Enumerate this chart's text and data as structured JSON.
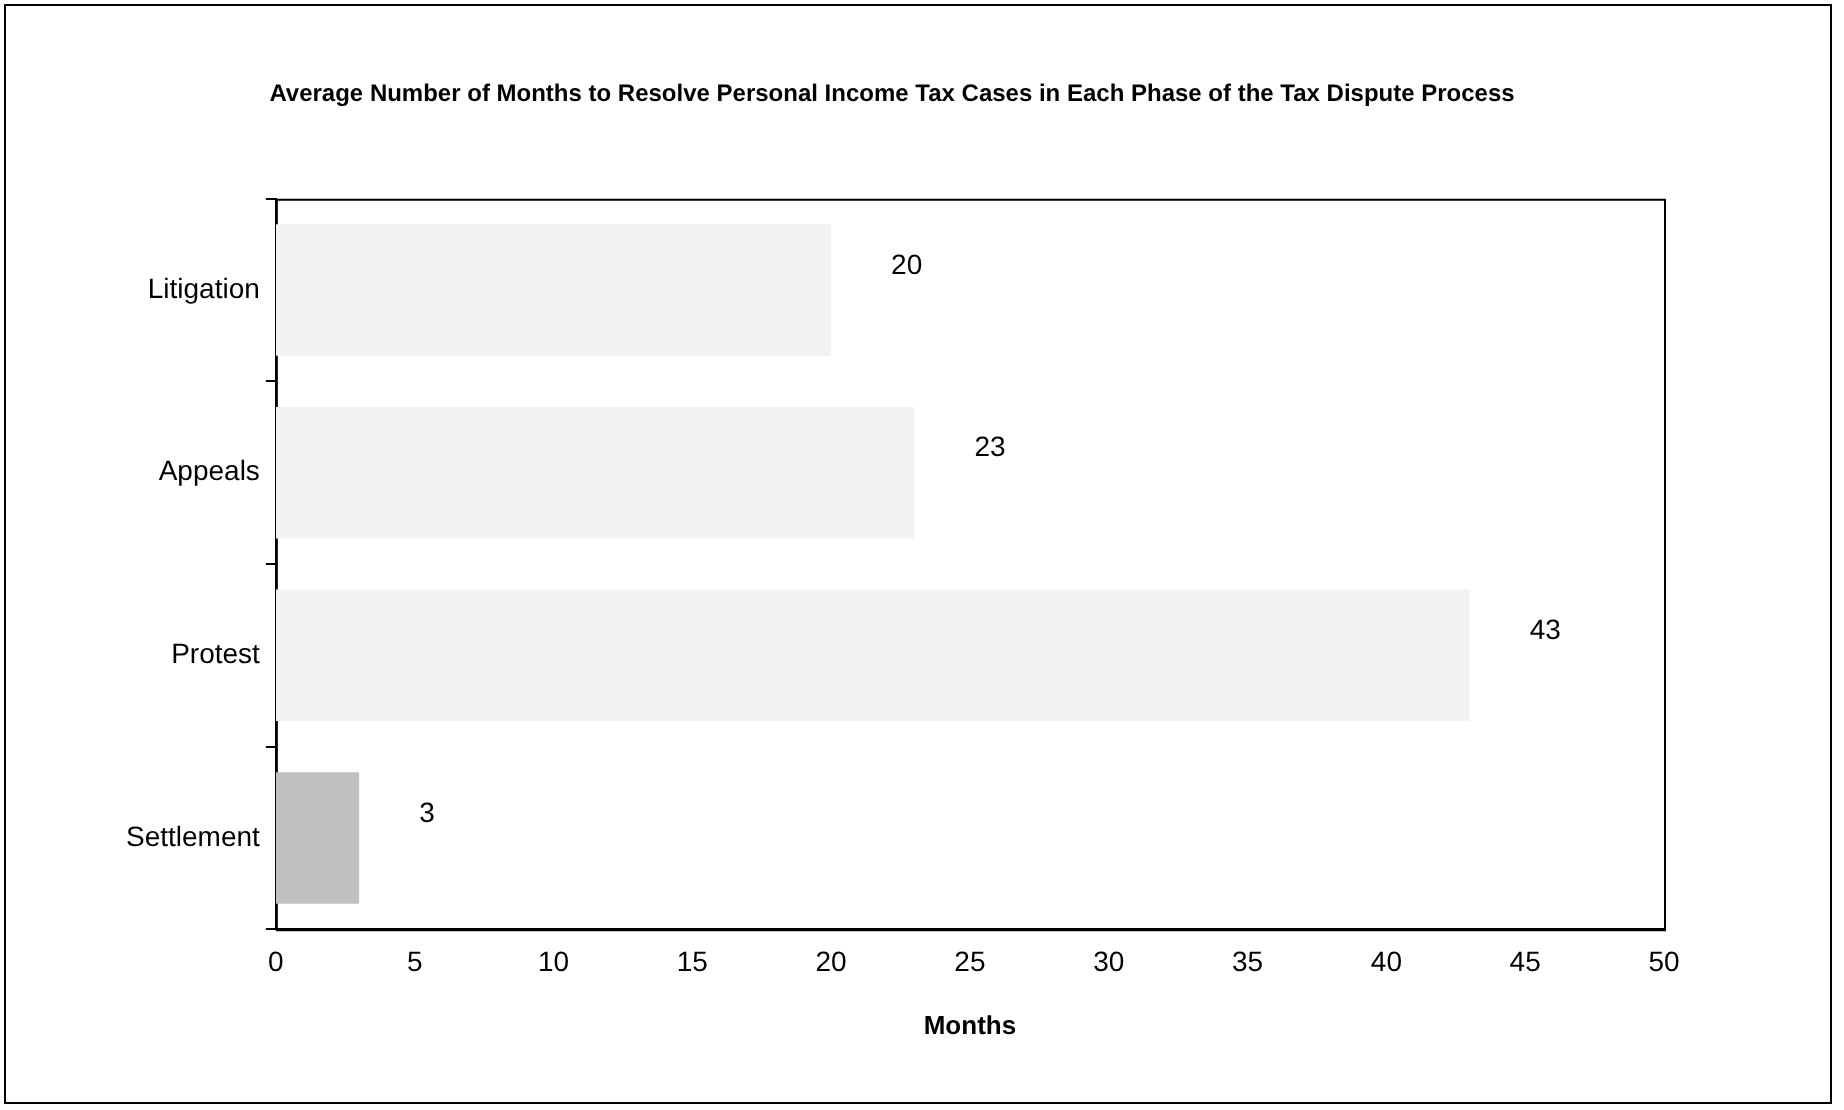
{
  "chart_data": {
    "type": "bar",
    "orientation": "horizontal",
    "title": "Average Number of Months to Resolve Personal Income Tax Cases in Each Phase of the Tax Dispute Process",
    "xlabel": "Months",
    "categories": [
      "Litigation",
      "Appeals",
      "Protest",
      "Settlement"
    ],
    "values": [
      20,
      23,
      43,
      3
    ],
    "colors": [
      "#f2f2f2",
      "#f2f2f2",
      "#f2f2f2",
      "#c0c0c0"
    ],
    "xlim": [
      0,
      50
    ],
    "xticks": [
      0,
      5,
      10,
      15,
      20,
      25,
      30,
      35,
      40,
      45,
      50
    ],
    "data_labels": true,
    "grid": false,
    "legend": false
  }
}
